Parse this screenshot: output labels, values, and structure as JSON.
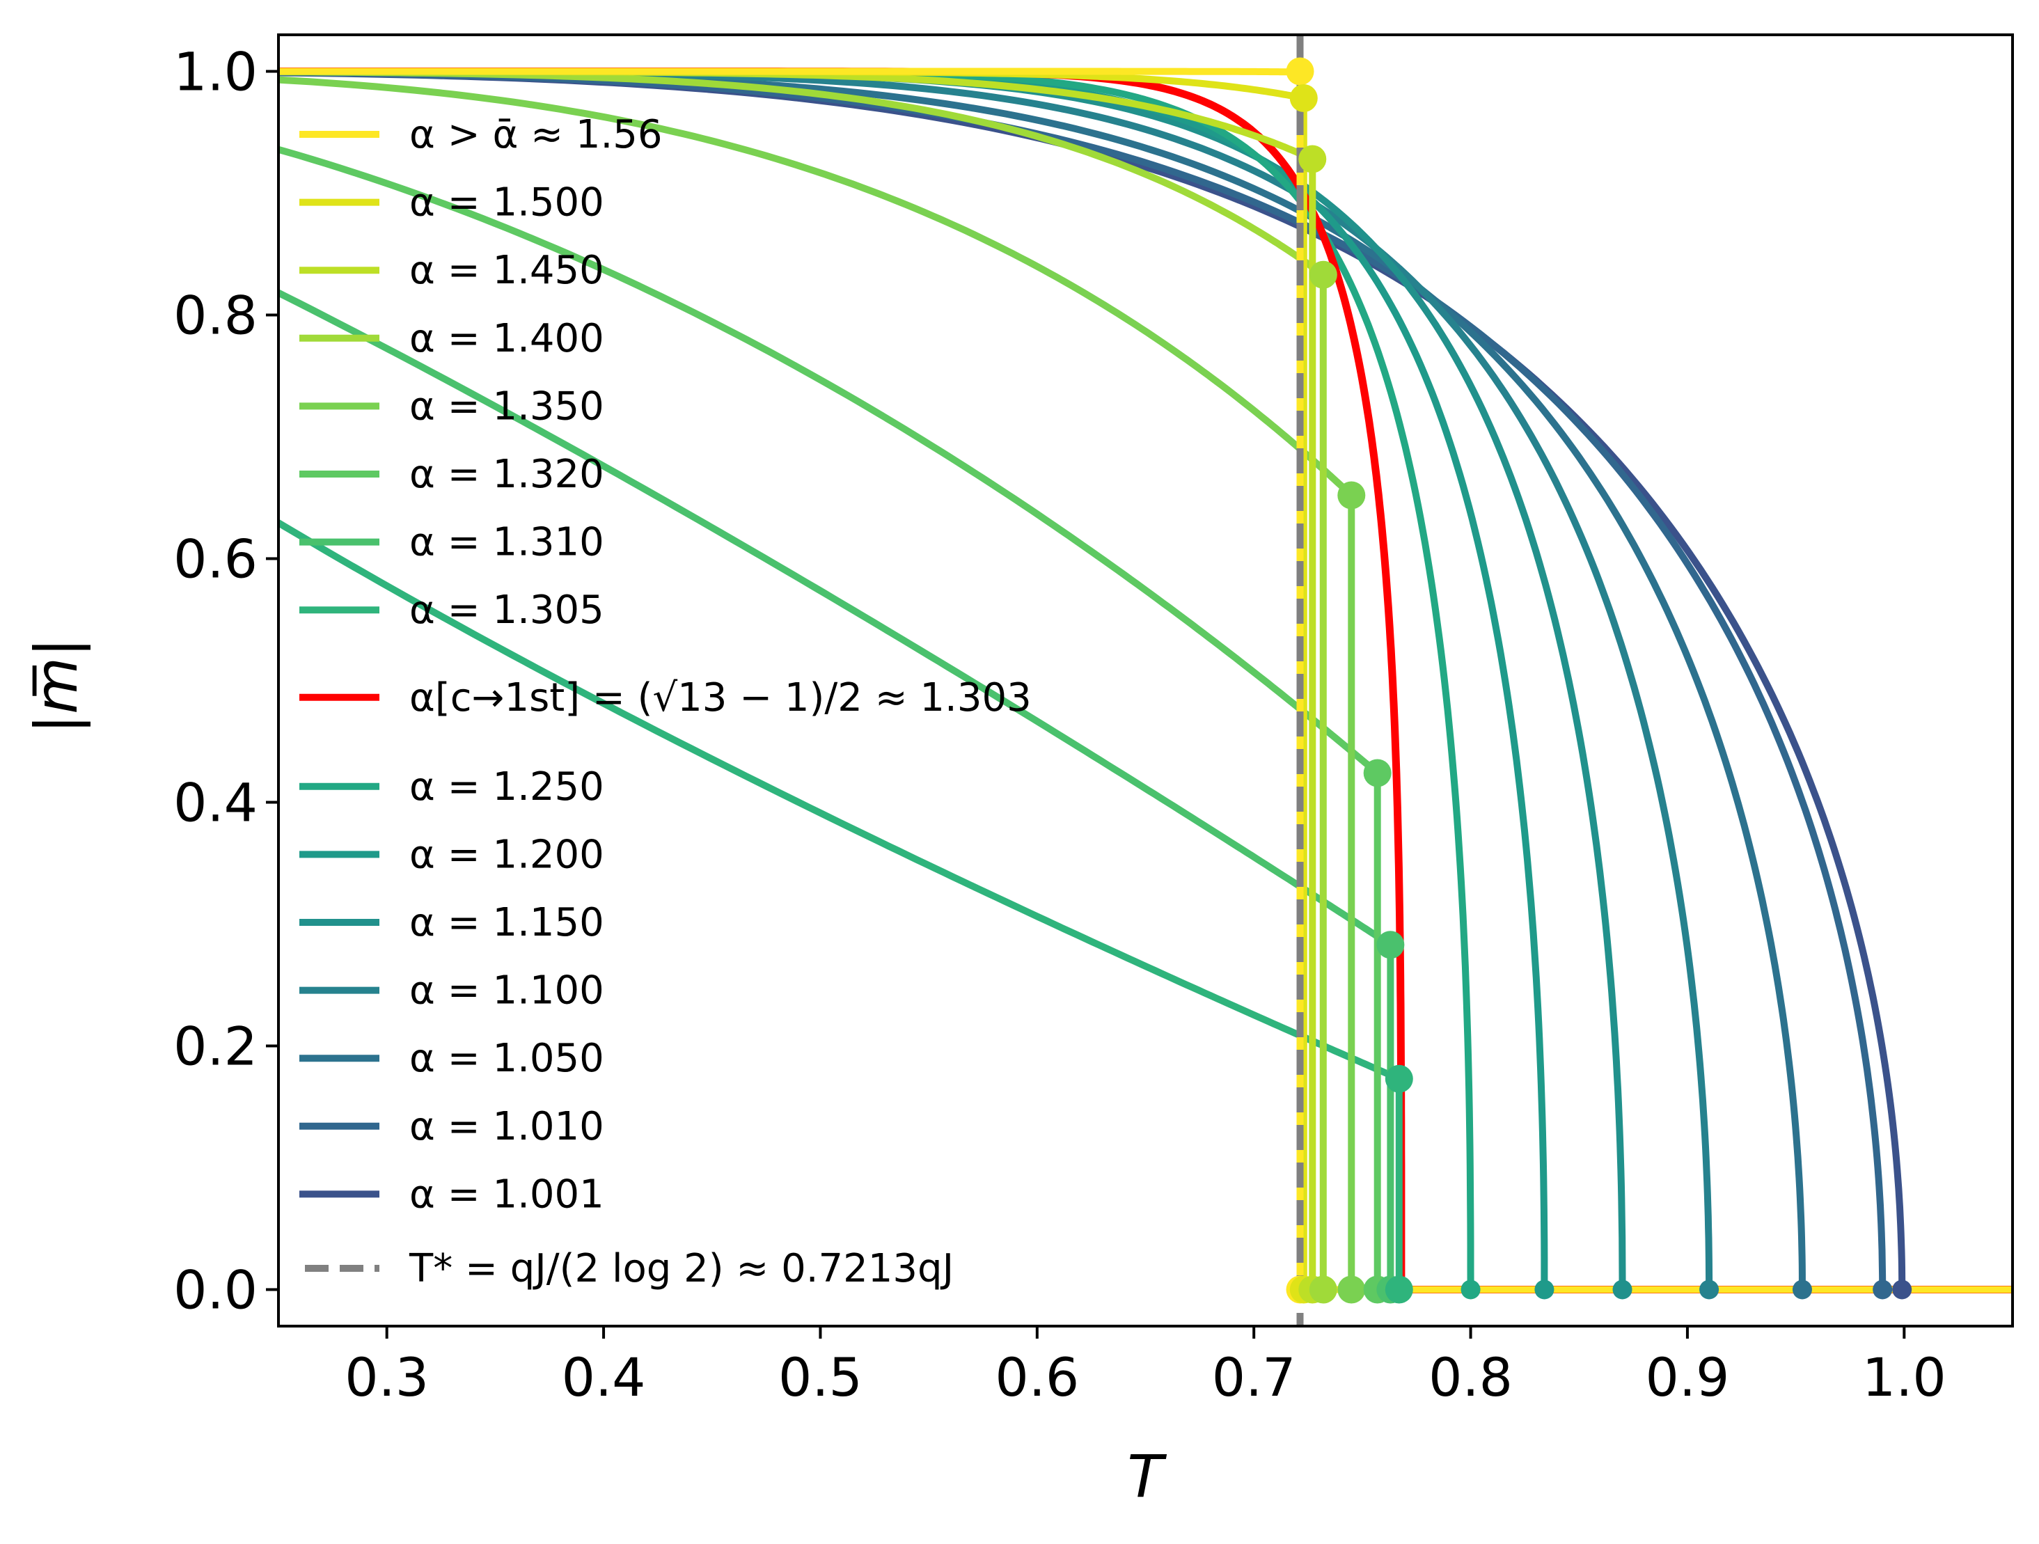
{
  "chart_data": {
    "type": "line",
    "title": "",
    "xlabel": "T",
    "ylabel": "|m̅|",
    "xlim": [
      0.25,
      1.05
    ],
    "ylim": [
      -0.03,
      1.03
    ],
    "x_ticks": [
      0.3,
      0.4,
      0.5,
      0.6,
      0.7,
      0.8,
      0.9,
      1.0
    ],
    "x_tick_labels": [
      "0.3",
      "0.4",
      "0.5",
      "0.6",
      "0.7",
      "0.8",
      "0.9",
      "1.0"
    ],
    "y_ticks": [
      0.0,
      0.2,
      0.4,
      0.6,
      0.8,
      1.0
    ],
    "y_tick_labels": [
      "0.0",
      "0.2",
      "0.4",
      "0.6",
      "0.8",
      "1.0"
    ],
    "grid": false,
    "legend_position": "left",
    "series": [
      {
        "name": "α > ᾱ ≈ 1.56",
        "alpha": 1.56,
        "color": "#fde725",
        "transition": "first-order",
        "t_jump": 0.7213,
        "m_jump": 1.0
      },
      {
        "name": "α = 1.500",
        "alpha": 1.5,
        "color": "#dfe318",
        "transition": "first-order",
        "t_jump": 0.723,
        "m_jump": 0.978
      },
      {
        "name": "α = 1.450",
        "alpha": 1.45,
        "color": "#bddf26",
        "transition": "first-order",
        "t_jump": 0.727,
        "m_jump": 0.928
      },
      {
        "name": "α = 1.400",
        "alpha": 1.4,
        "color": "#a0da39",
        "transition": "first-order",
        "t_jump": 0.732,
        "m_jump": 0.833
      },
      {
        "name": "α = 1.350",
        "alpha": 1.35,
        "color": "#7ad151",
        "transition": "first-order",
        "t_jump": 0.745,
        "m_jump": 0.652
      },
      {
        "name": "α = 1.320",
        "alpha": 1.32,
        "color": "#5ec962",
        "transition": "first-order",
        "t_jump": 0.757,
        "m_jump": 0.424
      },
      {
        "name": "α = 1.310",
        "alpha": 1.31,
        "color": "#4ac16d",
        "transition": "first-order",
        "t_jump": 0.763,
        "m_jump": 0.283
      },
      {
        "name": "α = 1.305",
        "alpha": 1.305,
        "color": "#2fb47c",
        "transition": "first-order",
        "t_jump": 0.767,
        "m_jump": 0.173
      },
      {
        "name": "α[c→1st] = (√13 − 1)/2 ≈ 1.303",
        "alpha": 1.303,
        "color": "#ff0000",
        "transition": "critical-endpoint",
        "t_c": 0.768
      },
      {
        "name": "α = 1.250",
        "alpha": 1.25,
        "color": "#22a884",
        "transition": "continuous",
        "t_c": 0.8
      },
      {
        "name": "α = 1.200",
        "alpha": 1.2,
        "color": "#1f9a8a",
        "transition": "continuous",
        "t_c": 0.834
      },
      {
        "name": "α = 1.150",
        "alpha": 1.15,
        "color": "#21918c",
        "transition": "continuous",
        "t_c": 0.87
      },
      {
        "name": "α = 1.100",
        "alpha": 1.1,
        "color": "#26828e",
        "transition": "continuous",
        "t_c": 0.91
      },
      {
        "name": "α = 1.050",
        "alpha": 1.05,
        "color": "#2c728e",
        "transition": "continuous",
        "t_c": 0.953
      },
      {
        "name": "α = 1.010",
        "alpha": 1.01,
        "color": "#31678e",
        "transition": "continuous",
        "t_c": 0.99
      },
      {
        "name": "α = 1.001",
        "alpha": 1.001,
        "color": "#3b528b",
        "transition": "continuous",
        "t_c": 0.999
      }
    ],
    "reference_lines": [
      {
        "name": "T* = qJ/(2 log 2) ≈ 0.7213qJ",
        "orientation": "vertical",
        "x": 0.7213,
        "style": "dashed",
        "color": "#808080"
      }
    ]
  }
}
